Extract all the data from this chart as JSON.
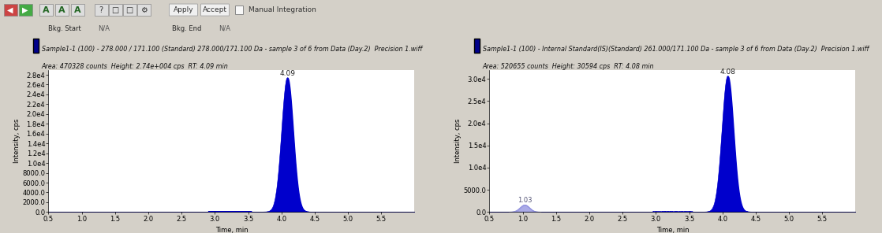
{
  "background_color": "#d4d0c8",
  "plot_bg_color": "#ffffff",
  "left_plot": {
    "title_line1": "Sample1-1 (100) - 278.000 / 171.100 (Standard) 278.000/171.100 Da - sample 3 of 6 from Data (Day.2)  Precision 1.wiff",
    "title_line2": "Area: 470328 counts  Height: 2.74e+004 cps  RT: 4.09 min",
    "peak_rt": 4.09,
    "peak_height": 27400,
    "peak_sigma": 0.085,
    "peak_color": "#0000cc",
    "ylim": [
      0,
      29000
    ],
    "yticks": [
      0,
      2000,
      4000,
      6000,
      8000,
      10000,
      12000,
      14000,
      16000,
      18000,
      20000,
      22000,
      24000,
      26000,
      28000
    ],
    "ytick_labels": [
      "0.0",
      "2000.0",
      "4000.0",
      "6000.0",
      "8000.0",
      "1.0e4",
      "1.2e4",
      "1.4e4",
      "1.6e4",
      "1.8e4",
      "2.0e4",
      "2.2e4",
      "2.4e4",
      "2.6e4",
      "2.8e4"
    ],
    "xlabel": "Time, min",
    "ylabel": "Intensity, cps",
    "xlim": [
      0.5,
      6.0
    ],
    "xticks": [
      0.5,
      1.0,
      1.5,
      2.0,
      2.5,
      3.0,
      3.5,
      4.0,
      4.5,
      5.0,
      5.5
    ],
    "peak_label": "4.09",
    "noise_start": 2.9,
    "noise_end": 3.55,
    "noise_amplitude": 100
  },
  "right_plot": {
    "title_line1": "Sample1-1 (100) - Internal Standard(IS)(Standard) 261.000/171.100 Da - sample 3 of 6 from Data (Day.2)  Precision 1.wiff",
    "title_line2": "Area: 520655 counts  Height: 30594 cps  RT: 4.08 min",
    "peak_rt": 4.08,
    "peak_height": 30594,
    "peak_sigma": 0.085,
    "peak_color": "#0000cc",
    "small_peak_rt": 1.03,
    "small_peak_height": 1600,
    "small_peak_sigma": 0.07,
    "small_peak_color": "#8888dd",
    "small_peak_label": "1.03",
    "ylim": [
      0,
      32000
    ],
    "yticks": [
      0,
      5000,
      10000,
      15000,
      20000,
      25000,
      30000
    ],
    "ytick_labels": [
      "0.0",
      "5000.0",
      "1.0e4",
      "1.5e4",
      "2.0e4",
      "2.5e4",
      "3.0e4"
    ],
    "xlabel": "Time, min",
    "ylabel": "Intensity, cps",
    "xlim": [
      0.5,
      6.0
    ],
    "xticks": [
      0.5,
      1.0,
      1.5,
      2.0,
      2.5,
      3.0,
      3.5,
      4.0,
      4.5,
      5.0,
      5.5
    ],
    "peak_label": "4.08",
    "noise_start": 2.95,
    "noise_end": 3.55,
    "noise_amplitude": 80
  },
  "legend_color": "#00008b",
  "font_size": 6.0,
  "tick_font_size": 6.0,
  "title_font_size": 5.8,
  "label_font_size": 6.5
}
